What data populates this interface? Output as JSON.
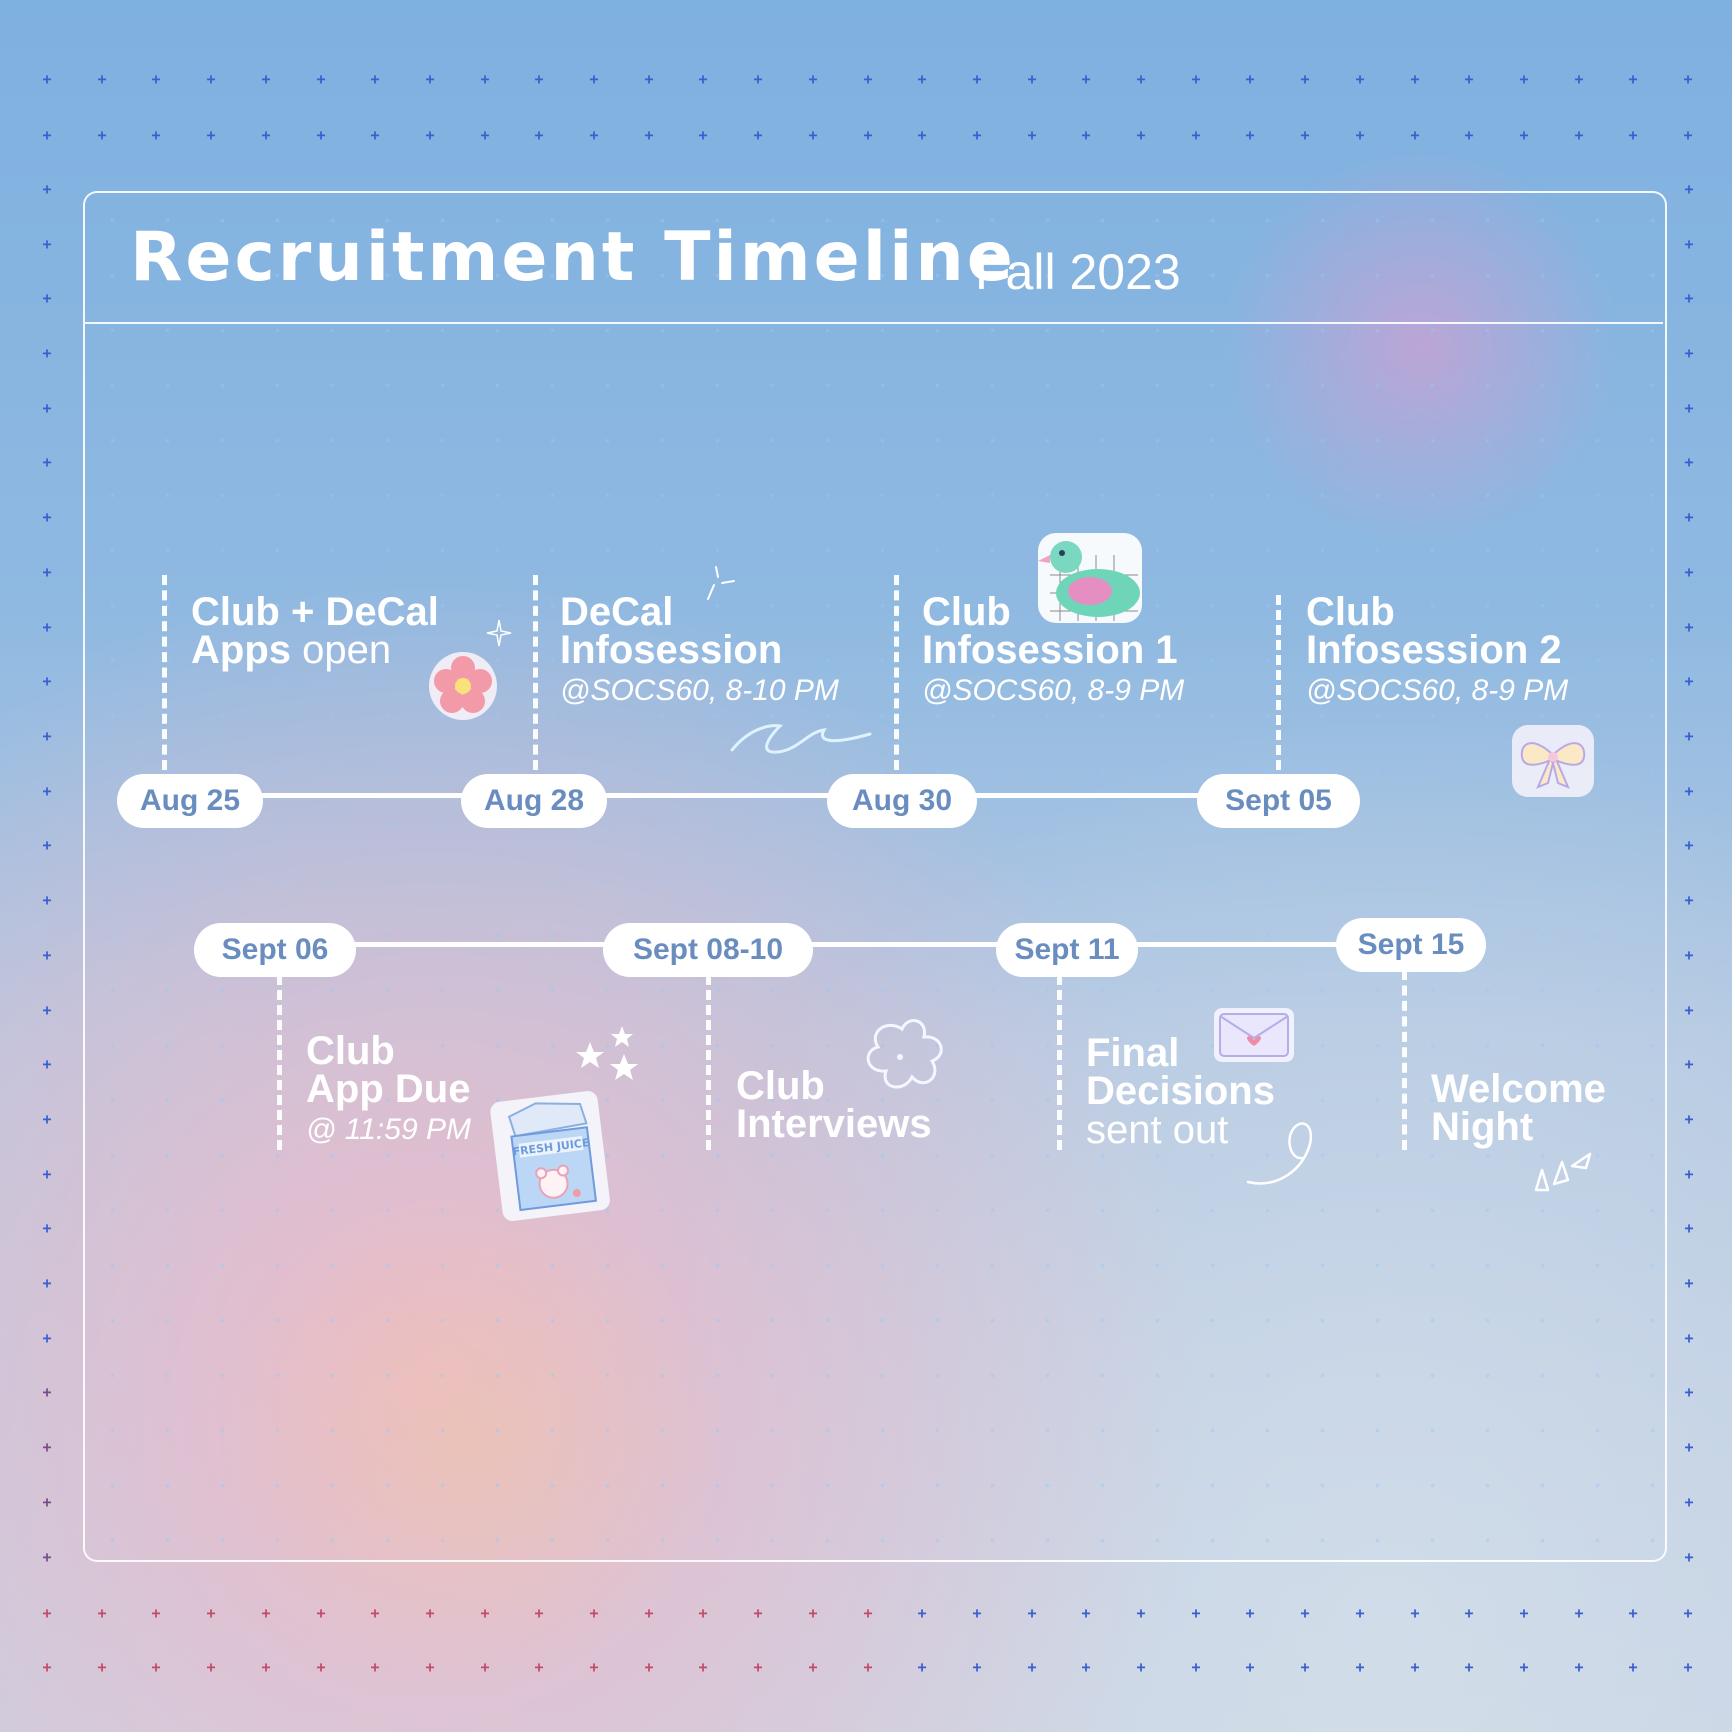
{
  "header": {
    "title": "Recruitment Timeline",
    "subtitle": "Fall 2023"
  },
  "timeline_top": [
    {
      "date": "Aug 25",
      "line1": "Club + DeCal",
      "line2_bold": "Apps",
      "line2_regular": " open"
    },
    {
      "date": "Aug 28",
      "line1": "DeCal",
      "line2": "Infosession",
      "detail": "@SOCS60, 8-10 PM"
    },
    {
      "date": "Aug 30",
      "line1": "Club",
      "line2": "Infosession 1",
      "detail": "@SOCS60, 8-9 PM"
    },
    {
      "date": "Sept 05",
      "line1": "Club",
      "line2": "Infosession 2",
      "detail": "@SOCS60, 8-9 PM"
    }
  ],
  "timeline_bottom": [
    {
      "date": "Sept 06",
      "line1": "Club",
      "line2": "App Due",
      "detail": "@ 11:59 PM"
    },
    {
      "date": "Sept 08-10",
      "line1": "Club",
      "line2": "Interviews"
    },
    {
      "date": "Sept 11",
      "line1": "Final",
      "line2": "Decisions",
      "line3": "sent out"
    },
    {
      "date": "Sept 15",
      "line1": "Welcome",
      "line2": "Night"
    }
  ],
  "stickers": {
    "milk_carton_text": "FRESH JUICE",
    "icons": [
      "flower-icon",
      "duck-icon",
      "bow-icon",
      "milk-carton-icon",
      "envelope-icon",
      "stars-icon",
      "sparkle-icon",
      "squiggle-icon"
    ]
  },
  "colors": {
    "pill_text": "#6a8dc0",
    "dot_grid": "#3a5fd0",
    "panel_border": "#ffffff"
  }
}
